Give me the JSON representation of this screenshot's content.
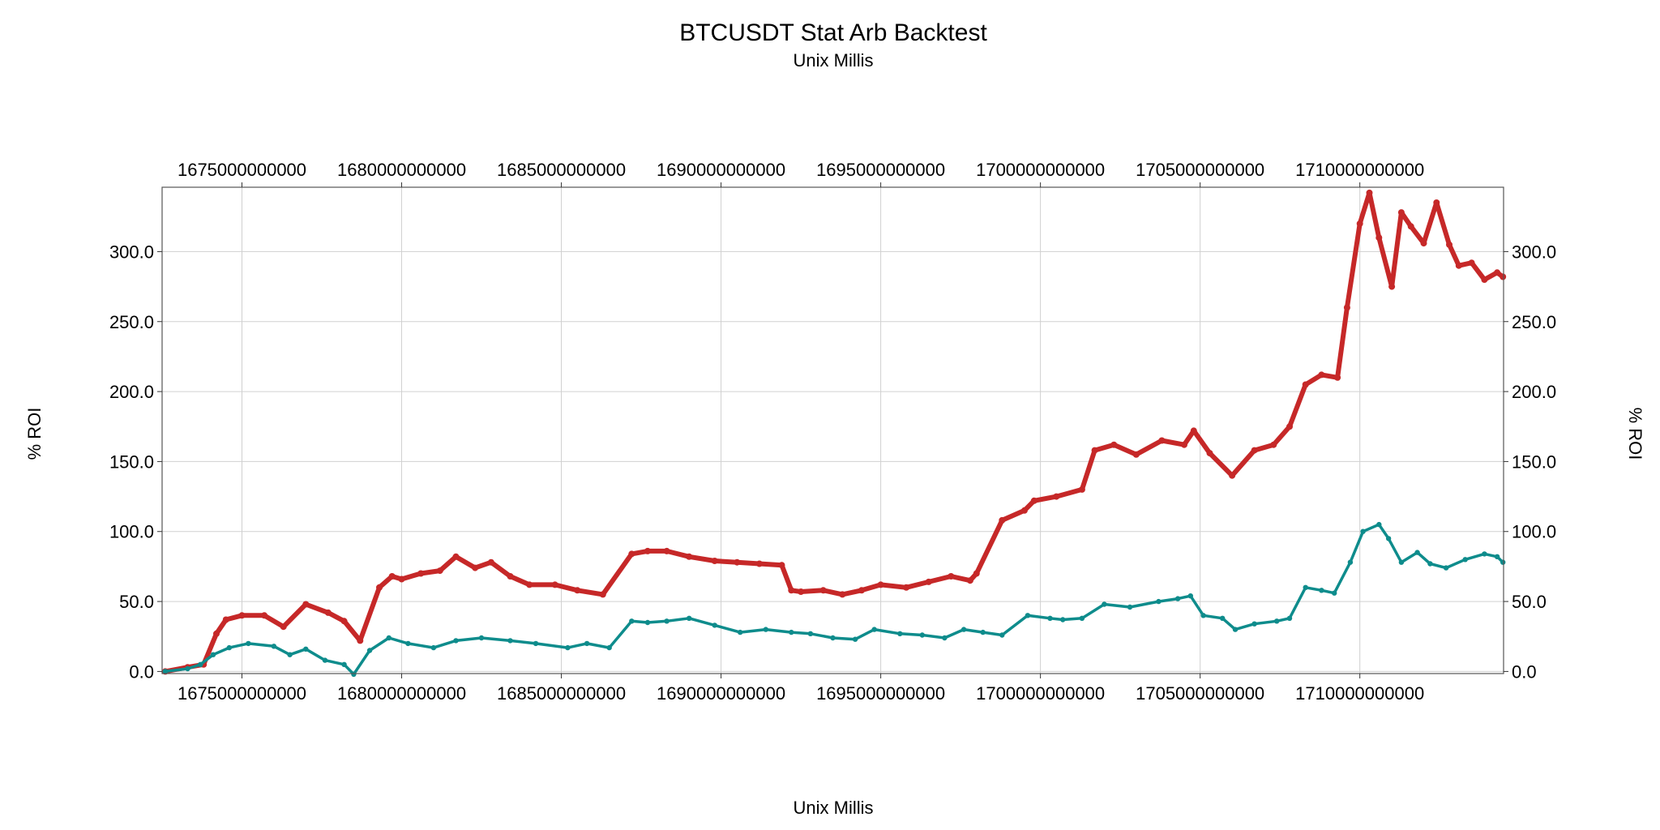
{
  "chart_data": {
    "type": "line",
    "title": "BTCUSDT Stat Arb Backtest",
    "subtitle": "Unix Millis",
    "xlabel": "Unix Millis",
    "ylabel": "% ROI",
    "ylabel_right": "% ROI",
    "xlim": [
      1672500000000,
      1714500000000
    ],
    "ylim": [
      -1.5,
      346
    ],
    "x_ticks": [
      "1675000000000",
      "1680000000000",
      "1685000000000",
      "1690000000000",
      "1695000000000",
      "1700000000000",
      "1705000000000",
      "1710000000000"
    ],
    "x_tick_values": [
      1675000000000,
      1680000000000,
      1685000000000,
      1690000000000,
      1695000000000,
      1700000000000,
      1705000000000,
      1710000000000
    ],
    "y_ticks": [
      "0.0",
      "50.0",
      "100.0",
      "150.0",
      "200.0",
      "250.0",
      "300.0"
    ],
    "y_tick_values": [
      0,
      50,
      100,
      150,
      200,
      250,
      300
    ],
    "grid": true,
    "legend": "none",
    "series": [
      {
        "color": "#c62828",
        "x": [
          1672600000000,
          1673300000000,
          1673800000000,
          1674200000000,
          1674500000000,
          1675000000000,
          1675700000000,
          1676300000000,
          1677000000000,
          1677700000000,
          1678200000000,
          1678700000000,
          1679300000000,
          1679700000000,
          1680000000000,
          1680600000000,
          1681200000000,
          1681700000000,
          1682300000000,
          1682800000000,
          1683400000000,
          1684000000000,
          1684800000000,
          1685500000000,
          1686300000000,
          1687200000000,
          1687700000000,
          1688300000000,
          1689000000000,
          1689800000000,
          1690500000000,
          1691200000000,
          1691900000000,
          1692200000000,
          1692500000000,
          1693200000000,
          1693800000000,
          1694400000000,
          1695000000000,
          1695800000000,
          1696500000000,
          1697200000000,
          1697800000000,
          1698000000000,
          1698800000000,
          1699500000000,
          1699800000000,
          1700500000000,
          1701300000000,
          1701700000000,
          1702300000000,
          1703000000000,
          1703800000000,
          1704500000000,
          1704800000000,
          1705300000000,
          1706000000000,
          1706700000000,
          1707300000000,
          1707800000000,
          1708300000000,
          1708800000000,
          1709300000000,
          1709600000000,
          1710000000000,
          1710300000000,
          1710600000000,
          1711000000000,
          1711300000000,
          1711600000000,
          1712000000000,
          1712400000000,
          1712800000000,
          1713100000000,
          1713500000000,
          1713900000000,
          1714300000000,
          1714480000000
        ],
        "y": [
          0,
          3,
          5,
          27,
          37,
          40,
          40,
          32,
          48,
          42,
          36,
          22,
          60,
          68,
          66,
          70,
          72,
          82,
          74,
          78,
          68,
          62,
          62,
          58,
          55,
          84,
          86,
          86,
          82,
          79,
          78,
          77,
          76,
          58,
          57,
          58,
          55,
          58,
          62,
          60,
          64,
          68,
          65,
          70,
          108,
          115,
          122,
          125,
          130,
          158,
          162,
          155,
          165,
          162,
          172,
          156,
          140,
          158,
          162,
          175,
          205,
          212,
          210,
          260,
          320,
          342,
          310,
          275,
          328,
          318,
          306,
          335,
          305,
          290,
          292,
          280,
          285,
          282
        ]
      },
      {
        "color": "#0e8c8c",
        "x": [
          1672600000000,
          1673300000000,
          1673700000000,
          1674100000000,
          1674600000000,
          1675200000000,
          1676000000000,
          1676500000000,
          1677000000000,
          1677600000000,
          1678200000000,
          1678500000000,
          1679000000000,
          1679600000000,
          1680200000000,
          1681000000000,
          1681700000000,
          1682500000000,
          1683400000000,
          1684200000000,
          1685200000000,
          1685800000000,
          1686500000000,
          1687200000000,
          1687700000000,
          1688300000000,
          1689000000000,
          1689800000000,
          1690600000000,
          1691400000000,
          1692200000000,
          1692800000000,
          1693500000000,
          1694200000000,
          1694800000000,
          1695600000000,
          1696300000000,
          1697000000000,
          1697600000000,
          1698200000000,
          1698800000000,
          1699600000000,
          1700300000000,
          1700700000000,
          1701300000000,
          1702000000000,
          1702800000000,
          1703700000000,
          1704300000000,
          1704700000000,
          1705100000000,
          1705700000000,
          1706100000000,
          1706700000000,
          1707400000000,
          1707800000000,
          1708300000000,
          1708800000000,
          1709200000000,
          1709700000000,
          1710100000000,
          1710600000000,
          1710900000000,
          1711300000000,
          1711800000000,
          1712200000000,
          1712700000000,
          1713300000000,
          1713900000000,
          1714300000000,
          1714480000000
        ],
        "y": [
          0,
          2,
          5,
          12,
          17,
          20,
          18,
          12,
          16,
          8,
          5,
          -2,
          15,
          24,
          20,
          17,
          22,
          24,
          22,
          20,
          17,
          20,
          17,
          36,
          35,
          36,
          38,
          33,
          28,
          30,
          28,
          27,
          24,
          23,
          30,
          27,
          26,
          24,
          30,
          28,
          26,
          40,
          38,
          37,
          38,
          48,
          46,
          50,
          52,
          54,
          40,
          38,
          30,
          34,
          36,
          38,
          60,
          58,
          56,
          78,
          100,
          105,
          95,
          78,
          85,
          77,
          74,
          80,
          84,
          82,
          78
        ]
      }
    ]
  }
}
